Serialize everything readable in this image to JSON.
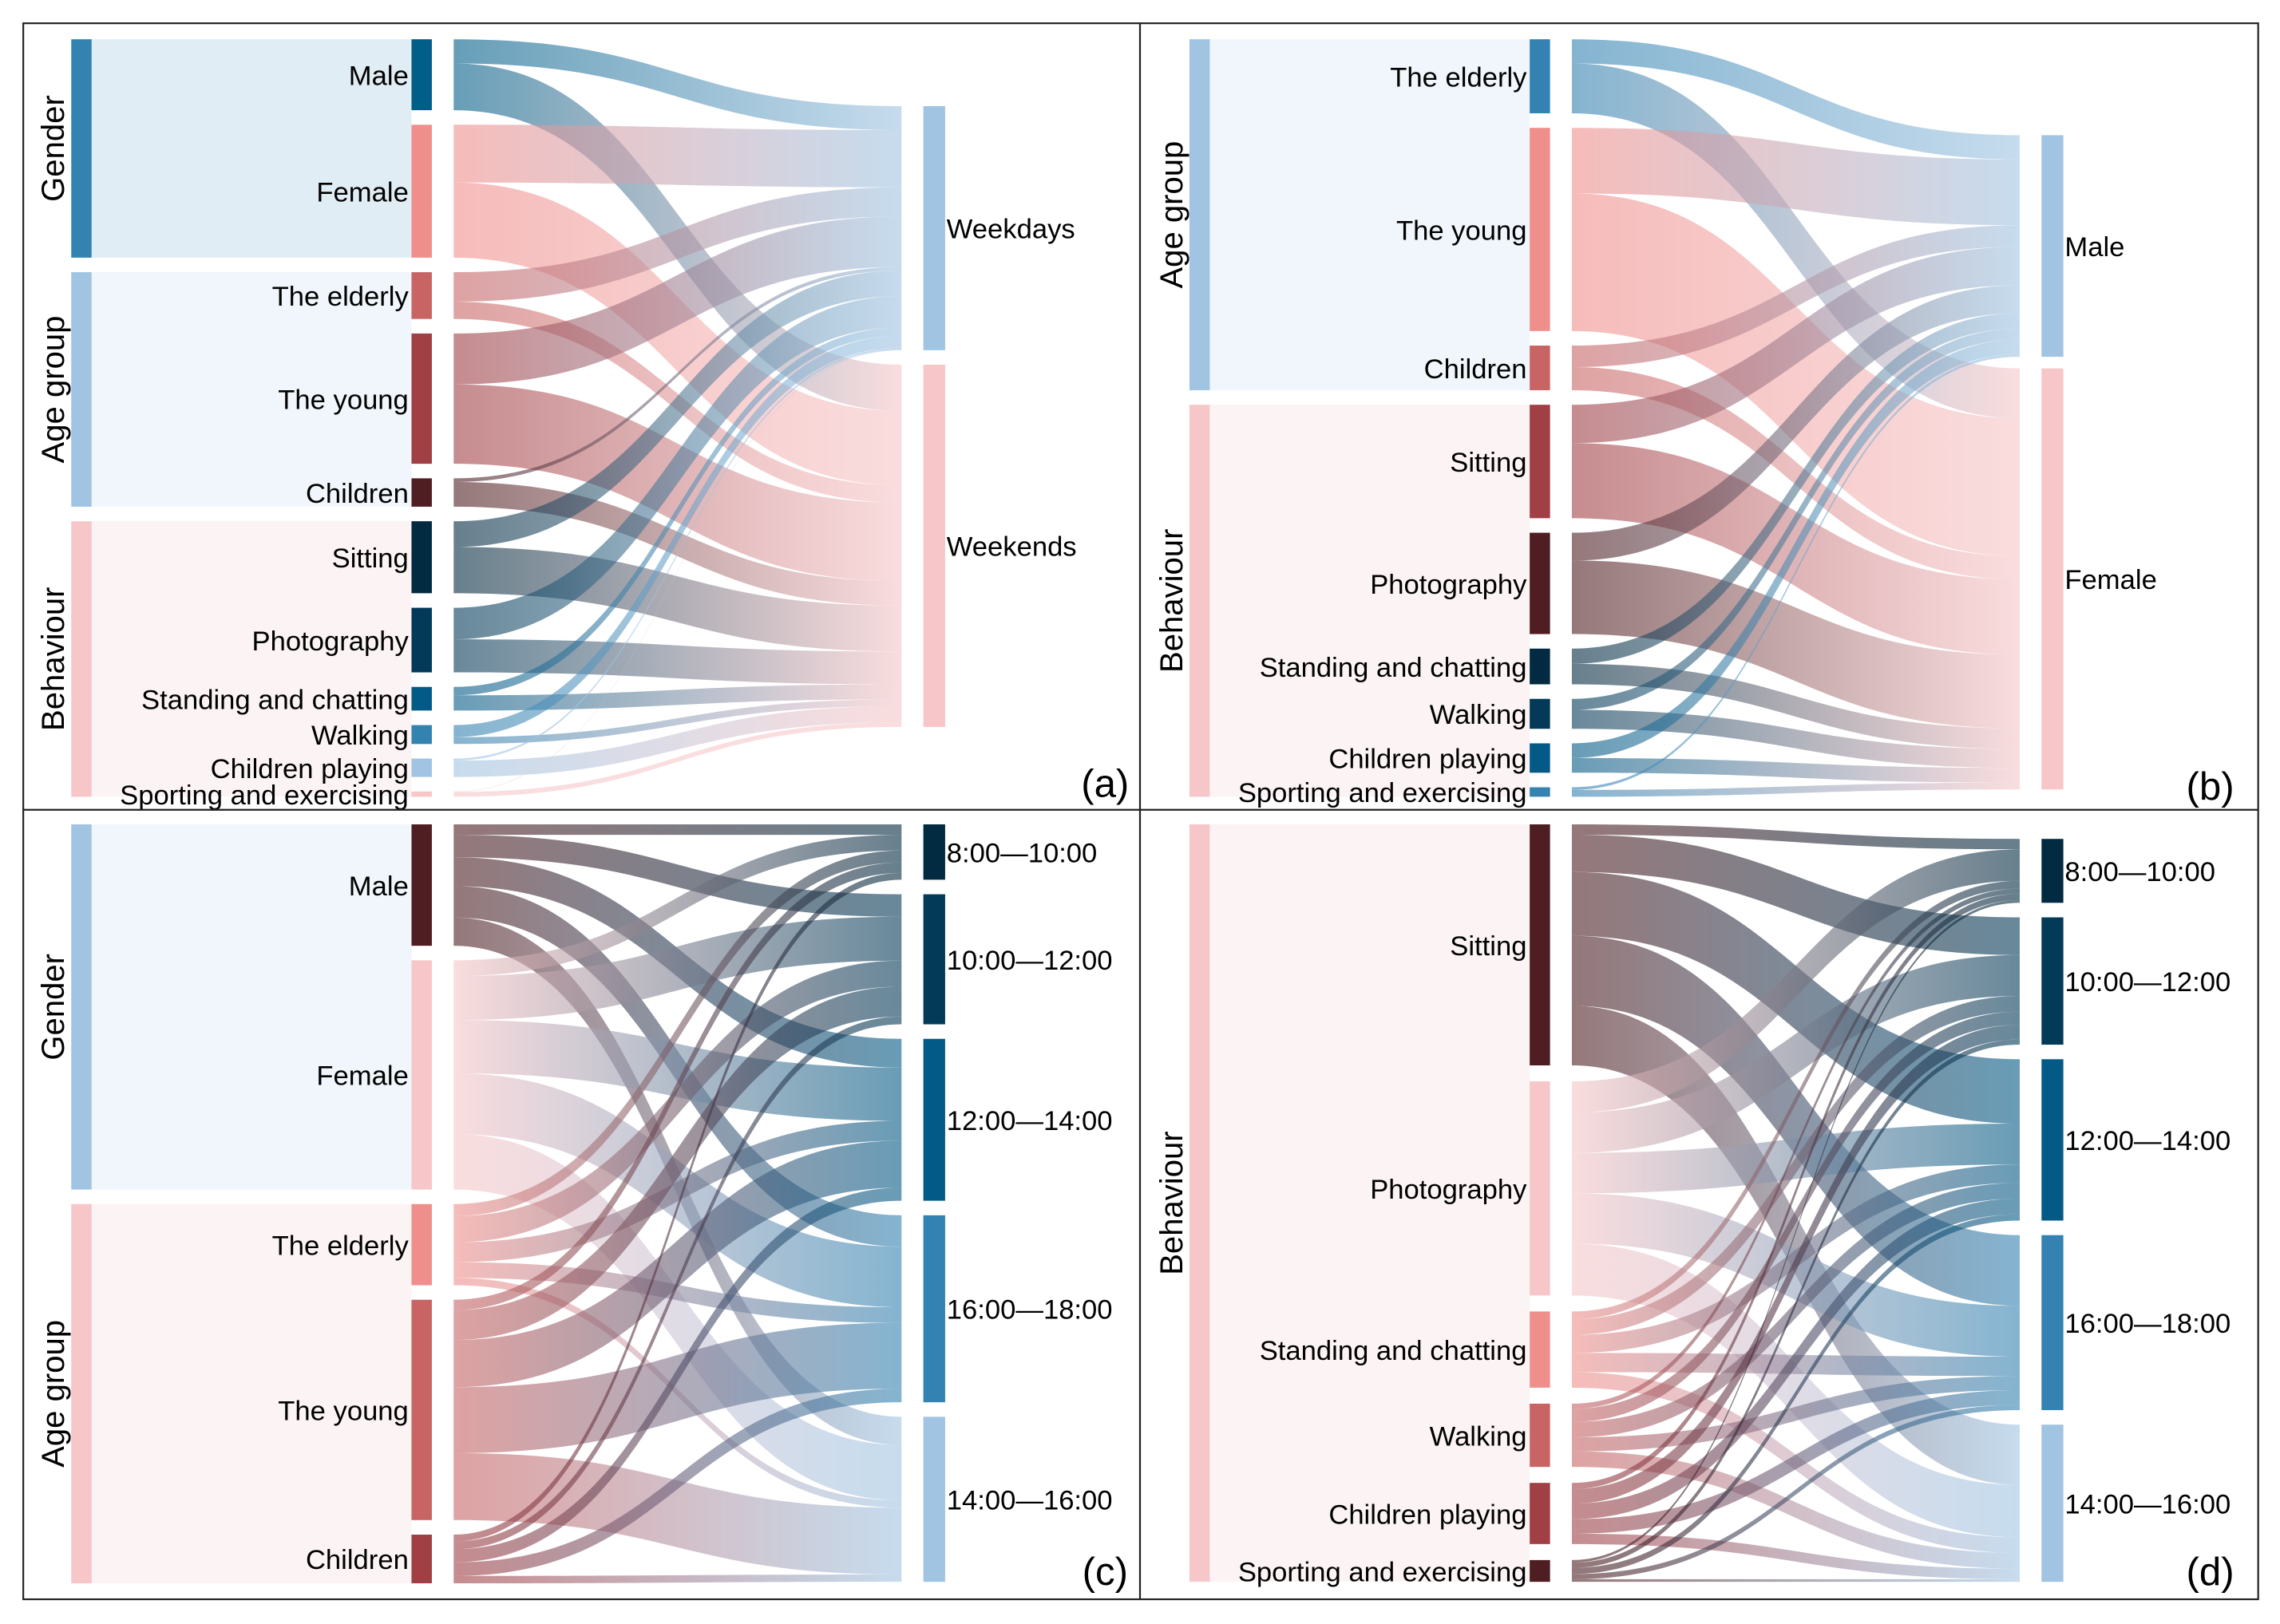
{
  "panels": [
    {
      "id": "a",
      "tag": "(a)",
      "groups": [
        {
          "name": "Gender",
          "color": "#3382b1",
          "bg": "#e1edf4",
          "nodes": [
            {
              "label": "Male",
              "color": "#015e88"
            },
            {
              "label": "Female",
              "color": "#ef8f8c"
            }
          ]
        },
        {
          "name": "Age group",
          "color": "#a0c4e2",
          "bg": "#f0f6fb",
          "nodes": [
            {
              "label": "The elderly",
              "color": "#c86464"
            },
            {
              "label": "The young",
              "color": "#a03f44"
            },
            {
              "label": "Children",
              "color": "#4e1e22"
            }
          ]
        },
        {
          "name": "Behaviour",
          "color": "#f6c6c8",
          "bg": "#fcf4f4",
          "nodes": [
            {
              "label": "Sitting",
              "color": "#022a40"
            },
            {
              "label": "Photography",
              "color": "#033a58"
            },
            {
              "label": "Standing and chatting",
              "color": "#045a86"
            },
            {
              "label": "Walking",
              "color": "#3482b0"
            },
            {
              "label": "Children playing",
              "color": "#a0c4e2"
            },
            {
              "label": "Sporting and exercising",
              "color": "#f6c6c8"
            }
          ]
        }
      ],
      "targets": [
        {
          "label": "Weekdays",
          "color": "#a0c4e2"
        },
        {
          "label": "Weekends",
          "color": "#f6c6c8"
        }
      ],
      "flows": [
        [
          46,
          89
        ],
        [
          110,
          143
        ],
        [
          56,
          33
        ],
        [
          97,
          151
        ],
        [
          7,
          47
        ],
        [
          49,
          88
        ],
        [
          60,
          63
        ],
        [
          16,
          29
        ],
        [
          23,
          13
        ],
        [
          4,
          31
        ],
        [
          1,
          9
        ]
      ]
    },
    {
      "id": "b",
      "tag": "(b)",
      "groups": [
        {
          "name": "Age group",
          "color": "#a0c4e2",
          "bg": "#f0f6fb",
          "nodes": [
            {
              "label": "The elderly",
              "color": "#3382b1"
            },
            {
              "label": "The young",
              "color": "#ef8f8c"
            },
            {
              "label": "Children",
              "color": "#c86464"
            }
          ]
        },
        {
          "name": "Behaviour",
          "color": "#f6c6c8",
          "bg": "#fcf4f4",
          "nodes": [
            {
              "label": "Sitting",
              "color": "#a03f44"
            },
            {
              "label": "Photography",
              "color": "#4e1e22"
            },
            {
              "label": "Standing and chatting",
              "color": "#022a40"
            },
            {
              "label": "Walking",
              "color": "#033a58"
            },
            {
              "label": "Children playing",
              "color": "#045a86"
            },
            {
              "label": "Sporting and exercising",
              "color": "#3382b1"
            }
          ]
        }
      ],
      "targets": [
        {
          "label": "Male",
          "color": "#a0c4e2"
        },
        {
          "label": "Female",
          "color": "#f6c6c8"
        }
      ],
      "flows": [
        [
          46,
          95
        ],
        [
          125,
          262
        ],
        [
          41,
          44
        ],
        [
          73,
          143
        ],
        [
          53,
          140
        ],
        [
          29,
          39
        ],
        [
          21,
          36
        ],
        [
          28,
          28
        ],
        [
          5,
          13
        ]
      ]
    },
    {
      "id": "c",
      "tag": "(c)",
      "groups": [
        {
          "name": "Gender",
          "color": "#a0c4e2",
          "bg": "#f0f6fb",
          "nodes": [
            {
              "label": "Male",
              "color": "#4e1e22"
            },
            {
              "label": "Female",
              "color": "#f6c6c8"
            }
          ]
        },
        {
          "name": "Age group",
          "color": "#f6c6c8",
          "bg": "#fcf4f4",
          "nodes": [
            {
              "label": "The elderly",
              "color": "#ef8f8c"
            },
            {
              "label": "The young",
              "color": "#c86464"
            },
            {
              "label": "Children",
              "color": "#a03f44"
            }
          ]
        }
      ],
      "targets": [
        {
          "label": "8:00—10:00",
          "color": "#022a40"
        },
        {
          "label": "10:00—12:00",
          "color": "#033a58"
        },
        {
          "label": "12:00—14:00",
          "color": "#045a86"
        },
        {
          "label": "16:00—18:00",
          "color": "#3382b1"
        },
        {
          "label": "14:00—16:00",
          "color": "#a0c4e2"
        }
      ],
      "flows": [
        [
          20,
          43,
          55,
          60,
          54
        ],
        [
          30,
          84,
          102,
          116,
          106
        ],
        [
          23,
          50,
          38,
          30,
          14
        ],
        [
          20,
          57,
          90,
          126,
          128
        ],
        [
          13,
          15,
          25,
          26,
          14
        ]
      ]
    },
    {
      "id": "d",
      "tag": "(d)",
      "groups": [
        {
          "name": "Behaviour",
          "color": "#f6c6c8",
          "bg": "#fcf4f4",
          "nodes": [
            {
              "label": "Sitting",
              "color": "#4e1e22"
            },
            {
              "label": "Photography",
              "color": "#f6c6c8"
            },
            {
              "label": "Standing and chatting",
              "color": "#ef8f8c"
            },
            {
              "label": "Walking",
              "color": "#c86464"
            },
            {
              "label": "Children playing",
              "color": "#a03f44"
            },
            {
              "label": "Sporting and exercising",
              "color": "#4e1e22"
            }
          ]
        }
      ],
      "targets": [
        {
          "label": "8:00—10:00",
          "color": "#022a40"
        },
        {
          "label": "10:00—12:00",
          "color": "#033a58"
        },
        {
          "label": "12:00—14:00",
          "color": "#045a86"
        },
        {
          "label": "16:00—18:00",
          "color": "#3382b1"
        },
        {
          "label": "14:00—16:00",
          "color": "#a0c4e2"
        }
      ],
      "flows": [
        [
          20,
          72,
          123,
          135,
          115
        ],
        [
          60,
          78,
          78,
          97,
          100
        ],
        [
          15,
          30,
          35,
          37,
          30
        ],
        [
          10,
          25,
          30,
          27,
          30
        ],
        [
          12,
          28,
          30,
          28,
          20
        ],
        [
          5,
          10,
          12,
          10,
          5
        ]
      ]
    }
  ]
}
